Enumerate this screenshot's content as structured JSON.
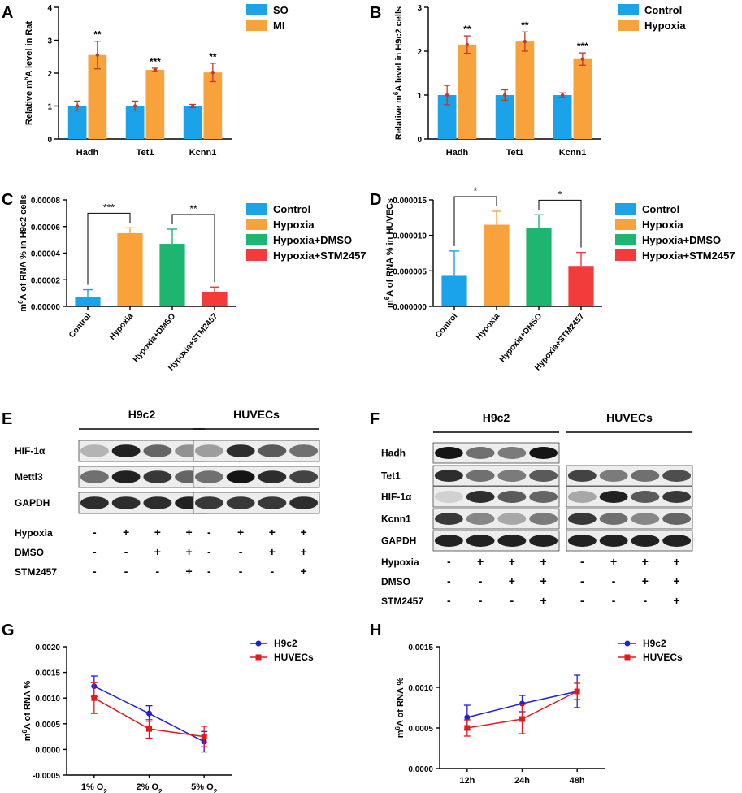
{
  "panels": [
    {
      "id": "A",
      "label": "A"
    },
    {
      "id": "B",
      "label": "B"
    },
    {
      "id": "C",
      "label": "C"
    },
    {
      "id": "D",
      "label": "D"
    },
    {
      "id": "E",
      "label": "E"
    },
    {
      "id": "F",
      "label": "F"
    },
    {
      "id": "G",
      "label": "G"
    },
    {
      "id": "H",
      "label": "H"
    }
  ],
  "colors": {
    "blue": "#1aa3e8",
    "orange": "#f7a23b",
    "green": "#1db56f",
    "red": "#f23c3c",
    "errbar": "#c0392b",
    "dot": "#c0392b",
    "lineBlue": "#1f1fd6",
    "lineRed": "#e31a1c"
  },
  "chart_data": [
    {
      "id": "A",
      "type": "bar",
      "categories": [
        "Hadh",
        "Tet1",
        "Kcnn1"
      ],
      "series": [
        {
          "name": "SO",
          "color": "blue",
          "values": [
            1.0,
            1.0,
            1.0
          ],
          "errors": [
            0.15,
            0.15,
            0.05
          ]
        },
        {
          "name": "MI",
          "color": "orange",
          "values": [
            2.55,
            2.1,
            2.02
          ],
          "errors": [
            0.42,
            0.05,
            0.28
          ]
        }
      ],
      "significance": [
        "**",
        "***",
        "**"
      ],
      "ylabel_pre": "Relative m",
      "ylabel_sup": "6",
      "ylabel_post": "A level in Rat",
      "ylim": [
        0,
        4
      ],
      "yticks": [
        "0",
        "1",
        "2",
        "3",
        "4"
      ],
      "legend": "top-right"
    },
    {
      "id": "B",
      "type": "bar",
      "categories": [
        "Hadh",
        "Tet1",
        "Kcnn1"
      ],
      "series": [
        {
          "name": "Control",
          "color": "blue",
          "values": [
            1.0,
            1.0,
            1.0
          ],
          "errors": [
            0.22,
            0.12,
            0.05
          ]
        },
        {
          "name": "Hypoxia",
          "color": "orange",
          "values": [
            2.15,
            2.22,
            1.82
          ],
          "errors": [
            0.2,
            0.22,
            0.14
          ]
        }
      ],
      "significance": [
        "**",
        "**",
        "***"
      ],
      "ylabel_pre": "Relative m",
      "ylabel_sup": "6",
      "ylabel_post": "A level in H9c2 cells",
      "ylim": [
        0,
        3
      ],
      "yticks": [
        "0",
        "1",
        "2",
        "3"
      ],
      "legend": "top-right"
    },
    {
      "id": "C",
      "type": "bar",
      "categories": [
        "Control",
        "Hypoxia",
        "Hypoxia+DMSO",
        "Hypoxia+STM2457"
      ],
      "colors": [
        "blue",
        "orange",
        "green",
        "red"
      ],
      "values": [
        7e-06,
        5.5e-05,
        4.7e-05,
        1.1e-05
      ],
      "errors": [
        5.5e-06,
        4e-06,
        1.1e-05,
        3.5e-06
      ],
      "ylabel_pre": "m",
      "ylabel_sup": "6",
      "ylabel_post": "A of RNA % in H9c2 cells",
      "ylim": [
        0,
        8e-05
      ],
      "yticks": [
        "0.00000",
        "0.00002",
        "0.00004",
        "0.00006",
        "0.00008"
      ],
      "brackets": [
        {
          "from": 0,
          "to": 1,
          "label": "***"
        },
        {
          "from": 2,
          "to": 3,
          "label": "**"
        }
      ],
      "legend": [
        "Control",
        "Hypoxia",
        "Hypoxia+DMSO",
        "Hypoxia+STM2457"
      ]
    },
    {
      "id": "D",
      "type": "bar",
      "categories": [
        "Control",
        "Hypoxia",
        "Hypoxia+DMSO",
        "Hypoxia+STM2457"
      ],
      "colors": [
        "blue",
        "orange",
        "green",
        "red"
      ],
      "values": [
        4.3e-06,
        1.15e-05,
        1.1e-05,
        5.7e-06
      ],
      "errors": [
        3.5e-06,
        1.9e-06,
        1.9e-06,
        1.9e-06
      ],
      "ylabel_pre": "m",
      "ylabel_sup": "6",
      "ylabel_post": "A of RNA % in HUVECs",
      "ylim": [
        0,
        1.5e-05
      ],
      "yticks": [
        "0.000000",
        "0.000005",
        "0.000010",
        "0.000015"
      ],
      "brackets": [
        {
          "from": 0,
          "to": 1,
          "label": "*"
        },
        {
          "from": 2,
          "to": 3,
          "label": "*"
        }
      ],
      "legend": [
        "Control",
        "Hypoxia",
        "Hypoxia+DMSO",
        "Hypoxia+STM2457"
      ]
    },
    {
      "id": "G",
      "type": "line",
      "categories": [
        "1% O",
        "2% O",
        "5% O"
      ],
      "category_sub": "2",
      "series": [
        {
          "name": "H9c2",
          "color": "lineBlue",
          "marker": "circle",
          "values": [
            0.00123,
            0.0007,
            0.00015
          ],
          "errors": [
            0.0002,
            0.00015,
            0.0002
          ]
        },
        {
          "name": "HUVECs",
          "color": "lineRed",
          "marker": "square",
          "values": [
            0.001,
            0.0004,
            0.00025
          ],
          "errors": [
            0.0003,
            0.00018,
            0.0002
          ]
        }
      ],
      "ylabel_pre": "m",
      "ylabel_sup": "6",
      "ylabel_post": "A of RNA %",
      "ylim": [
        -0.0005,
        0.002
      ],
      "yticks": [
        "-0.0005",
        "0.0000",
        "0.0005",
        "0.0010",
        "0.0015",
        "0.0020"
      ],
      "legend": "top-right"
    },
    {
      "id": "H",
      "type": "line",
      "categories": [
        "12h",
        "24h",
        "48h"
      ],
      "series": [
        {
          "name": "H9c2",
          "color": "lineBlue",
          "marker": "circle",
          "values": [
            0.00063,
            0.0008,
            0.00095
          ],
          "errors": [
            0.00015,
            0.0001,
            0.0002
          ]
        },
        {
          "name": "HUVECs",
          "color": "lineRed",
          "marker": "square",
          "values": [
            0.0005,
            0.00061,
            0.00095
          ],
          "errors": [
            0.0001,
            0.00018,
            0.0001
          ]
        }
      ],
      "ylabel_pre": "m",
      "ylabel_sup": "6",
      "ylabel_post": "A of RNA %",
      "ylim": [
        0,
        0.0015
      ],
      "yticks": [
        "0.0000",
        "0.0005",
        "0.0010",
        "0.0015"
      ],
      "legend": "top-right"
    }
  ],
  "blotE": {
    "groups": [
      "H9c2",
      "HUVECs"
    ],
    "rows": [
      "HIF-1α",
      "Mettl3",
      "GAPDH"
    ],
    "conditions": [
      {
        "name": "Hypoxia",
        "marks": [
          "-",
          "+",
          "+",
          "+",
          "-",
          "+",
          "+",
          "+"
        ]
      },
      {
        "name": "DMSO",
        "marks": [
          "-",
          "-",
          "+",
          "+",
          "-",
          "-",
          "+",
          "+"
        ]
      },
      {
        "name": "STM2457",
        "marks": [
          "-",
          "-",
          "-",
          "+",
          "-",
          "-",
          "-",
          "+"
        ]
      }
    ]
  },
  "blotF": {
    "groups": [
      "H9c2",
      "HUVECs"
    ],
    "rows": [
      "Hadh",
      "Tet1",
      "HIF-1α",
      "Kcnn1",
      "GAPDH"
    ],
    "conditions": [
      {
        "name": "Hypoxia",
        "marks": [
          "-",
          "+",
          "+",
          "+",
          "-",
          "+",
          "+",
          "+"
        ]
      },
      {
        "name": "DMSO",
        "marks": [
          "-",
          "-",
          "+",
          "+",
          "-",
          "-",
          "+",
          "+"
        ]
      },
      {
        "name": "STM2457",
        "marks": [
          "-",
          "-",
          "-",
          "+",
          "-",
          "-",
          "-",
          "+"
        ]
      }
    ]
  }
}
